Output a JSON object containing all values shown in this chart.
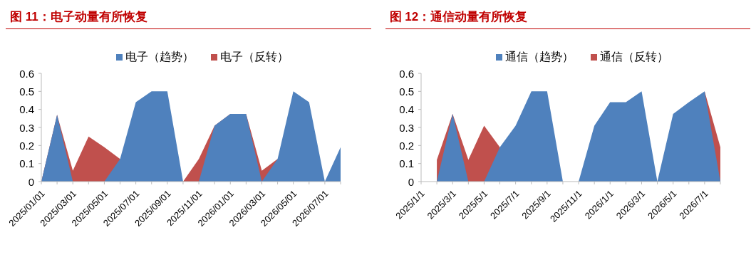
{
  "chart_data": [
    {
      "type": "area",
      "title": "图 11：电子动量有所恢复",
      "categories": [
        "2025/01/01",
        null,
        "2025/03/01",
        null,
        "2025/05/01",
        null,
        "2025/07/01",
        null,
        "2025/09/01",
        null,
        "2025/11/01",
        null,
        "2026/01/01",
        null,
        "2026/03/01",
        null,
        "2026/05/01",
        null,
        "2026/07/01",
        null
      ],
      "series": [
        {
          "name": "电子（趋势）",
          "color": "#4f81bd",
          "values": [
            0,
            0.37,
            0,
            0,
            0,
            0.125,
            0.44,
            0.5,
            0.5,
            0,
            0,
            0.31,
            0.375,
            0.375,
            0,
            0.125,
            0.5,
            0.44,
            0,
            0.19
          ]
        },
        {
          "name": "电子（反转）",
          "color": "#c0504d",
          "values": [
            0,
            0.37,
            0.06,
            0.25,
            0.19,
            0.125,
            0,
            0,
            0,
            0,
            0.125,
            0.31,
            0.375,
            0.375,
            0.06,
            0.125,
            0,
            0,
            0,
            0
          ]
        }
      ],
      "ylim": [
        0,
        0.6
      ],
      "yticks": [
        0,
        0.1,
        0.2,
        0.3,
        0.4,
        0.5,
        0.6
      ],
      "legend": "top",
      "grid": false
    },
    {
      "type": "area",
      "title": "图 12：通信动量有所恢复",
      "categories": [
        "2025/1/1",
        null,
        "2025/3/1",
        null,
        "2025/5/1",
        null,
        "2025/7/1",
        null,
        "2025/9/1",
        null,
        "2025/11/1",
        null,
        "2026/1/1",
        null,
        "2026/3/1",
        null,
        "2026/5/1",
        null,
        "2026/7/1",
        null
      ],
      "series": [
        {
          "name": "通信（趋势）",
          "color": "#4f81bd",
          "values": [
            null,
            0,
            0.375,
            0,
            0,
            0.19,
            0.31,
            0.5,
            0.5,
            0,
            0,
            0.31,
            0.44,
            0.44,
            0.5,
            0,
            0.375,
            0.44,
            0.5,
            0
          ]
        },
        {
          "name": "通信（反转）",
          "color": "#c0504d",
          "values": [
            null,
            0.12,
            0.375,
            0.12,
            0.31,
            0.19,
            null,
            null,
            null,
            null,
            null,
            null,
            null,
            null,
            null,
            null,
            null,
            null,
            0.5,
            0.19
          ]
        }
      ],
      "ylim": [
        0,
        0.6
      ],
      "yticks": [
        0,
        0.1,
        0.2,
        0.3,
        0.4,
        0.5,
        0.6
      ],
      "legend": "top",
      "grid": false
    }
  ]
}
